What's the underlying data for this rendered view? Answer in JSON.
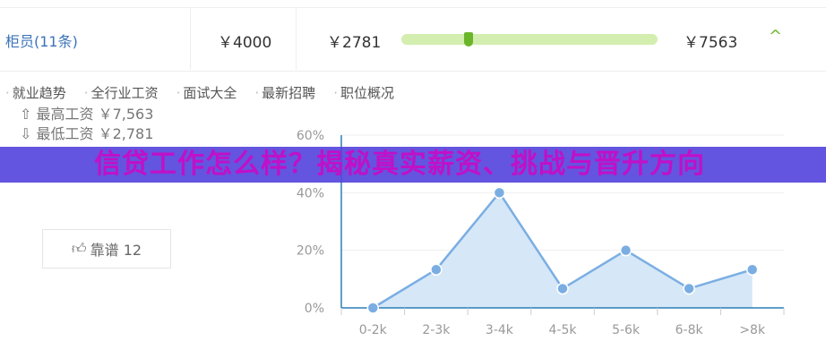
{
  "salary_row": {
    "job": "柜员(11条)",
    "average": "￥4000",
    "min": "￥2781",
    "max": "￥7563",
    "range_marker_fraction": 0.25,
    "expand_icon": "chevron-up-icon"
  },
  "links": [
    "就业趋势",
    "全行业工资",
    "面试大全",
    "最新招聘",
    "职位概况"
  ],
  "stats": {
    "highest_label": "最高工资",
    "highest_value": "￥7,563",
    "lowest_label": "最低工资",
    "lowest_value": "￥2,781"
  },
  "like_button": {
    "label": "靠谱 12"
  },
  "banner": {
    "text": "信贷工作怎么样？揭秘真实薪资、挑战与晋升方向"
  },
  "colors": {
    "accent_green": "#6bb52b",
    "line_blue": "#7aaee3",
    "banner_bg": "#5242dc",
    "banner_text": "#c010c8"
  },
  "chart_data": {
    "type": "area",
    "categories": [
      "0-2k",
      "2-3k",
      "3-4k",
      "4-5k",
      "5-6k",
      "6-8k",
      ">8k"
    ],
    "values": [
      0,
      13.3,
      40,
      6.7,
      20,
      6.7,
      13.3
    ],
    "ylim": [
      0,
      60
    ],
    "yticks": [
      "0%",
      "20%",
      "40%",
      "60%"
    ],
    "grid": true
  }
}
